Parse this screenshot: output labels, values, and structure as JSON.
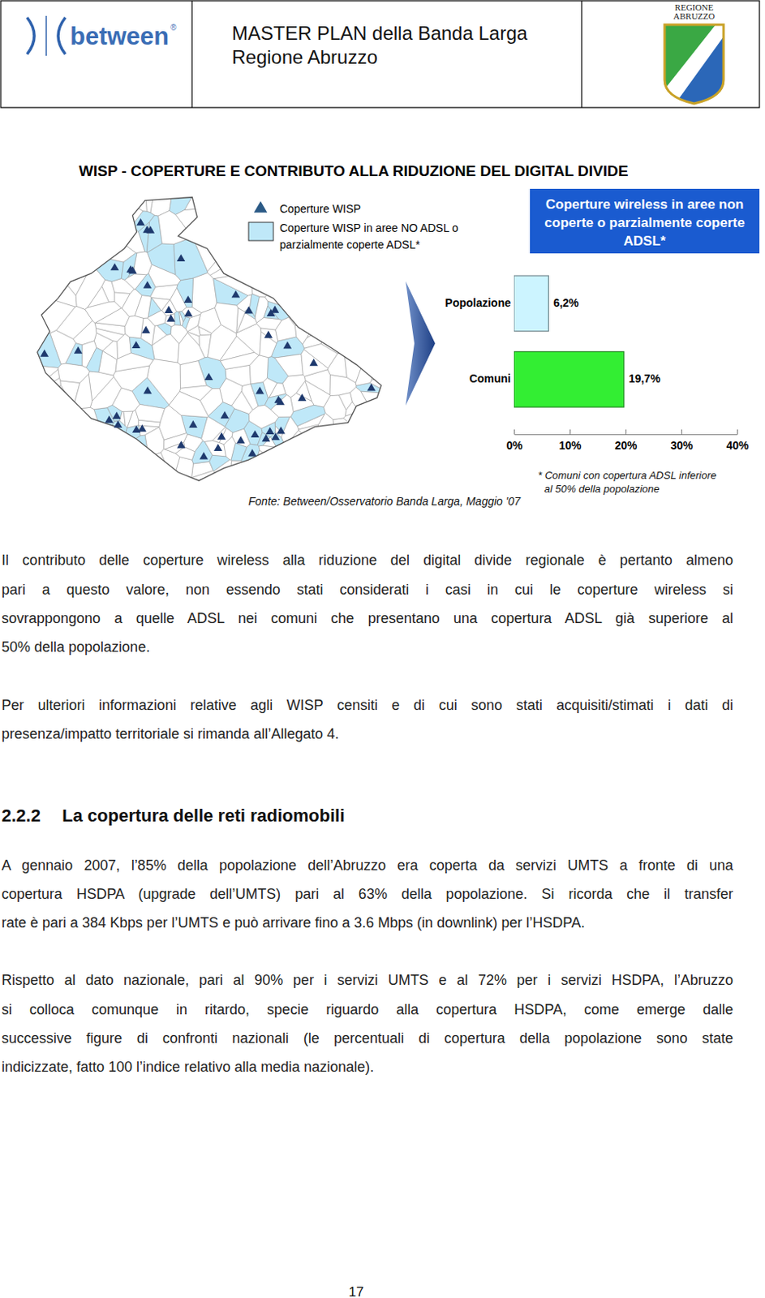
{
  "chart_data": {
    "type": "bar",
    "title": "Coperture wireless in aree non coperte o parzialmente coperte ADSL*",
    "categories": [
      "Popolazione",
      "Comuni"
    ],
    "values": [
      6.2,
      19.7
    ],
    "value_labels": [
      "6,2%",
      "19,7%"
    ],
    "colors": [
      "#ccf4ff",
      "#33ee33"
    ],
    "orientation": "horizontal",
    "data_labels": true,
    "xlim": [
      0,
      40
    ],
    "xticks": [
      {
        "value": 0,
        "label": "0%"
      },
      {
        "value": 10,
        "label": "10%"
      },
      {
        "value": 20,
        "label": "20%"
      },
      {
        "value": 30,
        "label": "30%"
      },
      {
        "value": 40,
        "label": "40%"
      }
    ],
    "grid": false
  },
  "document": {
    "header": {
      "logo_text": "between",
      "logo_mark": "®",
      "title_lines": [
        "MASTER PLAN della Banda Larga",
        "Regione Abruzzo"
      ],
      "emblem_lines": [
        "REGIONE",
        "ABRUZZO"
      ]
    },
    "figure": {
      "title": "WISP - COPERTURE E CONTRIBUTO ALLA RIDUZIONE DEL DIGITAL DIVIDE",
      "legend": [
        {
          "label_lines": [
            "Coperture WISP"
          ]
        },
        {
          "label_lines": [
            "Coperture WISP in aree NO ADSL o",
            "parzialmente coperte ADSL*"
          ]
        }
      ],
      "footnote_lines": [
        "* Comuni con copertura ADSL inferiore",
        "al 50% della popolazione"
      ],
      "source": "Fonte: Between/Osservatorio Banda Larga, Maggio '07"
    },
    "paragraphs_before": [
      [
        "Il contributo delle coperture wireless alla riduzione del digital divide regionale è pertanto almeno",
        "pari a questo valore, non essendo stati considerati i casi in cui le coperture wireless si",
        "sovrappongono a quelle ADSL nei comuni che presentano una copertura ADSL già superiore al",
        "50% della popolazione."
      ],
      [
        "Per ulteriori informazioni relative agli WISP censiti e di cui sono stati acquisiti/stimati i dati di",
        "presenza/impatto territoriale si rimanda all’Allegato 4."
      ]
    ],
    "section": {
      "number": "2.2.2",
      "title": "La copertura delle reti radiomobili"
    },
    "paragraphs_after": [
      [
        "A gennaio 2007, l’85% della popolazione dell’Abruzzo era coperta da servizi UMTS a fronte di una",
        "copertura HSDPA (upgrade dell’UMTS) pari al 63% della popolazione. Si ricorda che il transfer",
        "rate è pari a 384 Kbps per l’UMTS e può arrivare fino a 3.6 Mbps (in downlink) per l’HSDPA."
      ],
      [
        "Rispetto al dato nazionale, pari al 90% per i servizi UMTS e al 72% per i servizi HSDPA, l’Abruzzo",
        "si colloca comunque in ritardo, specie riguardo alla copertura HSDPA, come emerge dalle",
        "successive figure di confronti nazionali (le percentuali di copertura della popolazione sono state",
        "indicizzate, fatto 100 l’indice relativo alla media nazionale)."
      ]
    ],
    "page_number": "17"
  }
}
